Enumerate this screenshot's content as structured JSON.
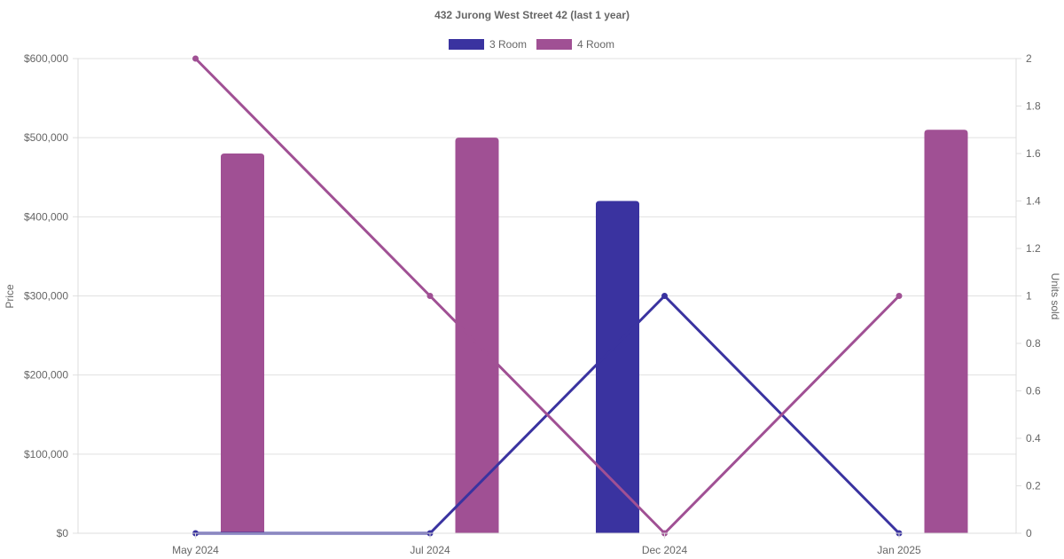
{
  "chart_data": {
    "type": "bar",
    "title": "432 Jurong West Street 42 (last 1 year)",
    "categories": [
      "May 2024",
      "Jul 2024",
      "Dec 2024",
      "Jan 2025"
    ],
    "y_left": {
      "label": "Price",
      "min": 0,
      "max": 600000,
      "ticks": [
        0,
        100000,
        200000,
        300000,
        400000,
        500000,
        600000
      ],
      "tick_labels": [
        "$0",
        "$100,000",
        "$200,000",
        "$300,000",
        "$400,000",
        "$500,000",
        "$600,000"
      ]
    },
    "y_right": {
      "label": "Units sold",
      "min": 0,
      "max": 2,
      "ticks": [
        0,
        0.2,
        0.4,
        0.6,
        0.8,
        1,
        1.2,
        1.4,
        1.6,
        1.8,
        2
      ],
      "tick_labels": [
        "0",
        "0.2",
        "0.4",
        "0.6",
        "0.8",
        "1",
        "1.2",
        "1.4",
        "1.6",
        "1.8",
        "2"
      ]
    },
    "grid": true,
    "legend_position": "top",
    "series": [
      {
        "name": "3 Room",
        "color": "#3a33a0",
        "price_bars": [
          null,
          null,
          420000,
          null
        ],
        "units_line": [
          0,
          0,
          1,
          0
        ]
      },
      {
        "name": "4 Room",
        "color": "#a05094",
        "price_bars": [
          480000,
          500000,
          null,
          510000
        ],
        "units_line": [
          2,
          1,
          0,
          1
        ]
      }
    ]
  }
}
